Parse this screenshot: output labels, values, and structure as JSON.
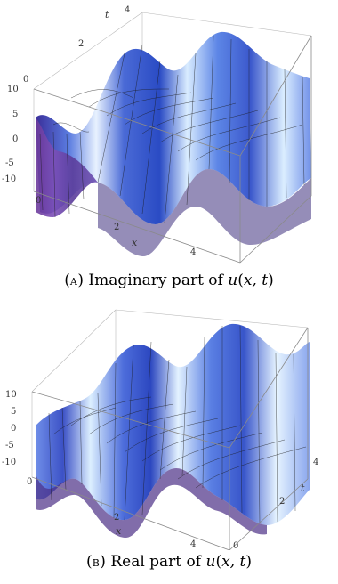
{
  "figures": [
    {
      "id": "a",
      "caption": {
        "label": "A",
        "text": "Imaginary part of",
        "func": "u",
        "args": "x, t"
      },
      "axes": {
        "x_label": "x",
        "t_label": "t",
        "z_ticks": [
          "10",
          "5",
          "0",
          "-5",
          "-10"
        ],
        "x_ticks": [
          "0",
          "2",
          "4"
        ],
        "t_ticks": [
          "0",
          "2",
          "4"
        ]
      }
    },
    {
      "id": "b",
      "caption": {
        "label": "B",
        "text": "Real part of",
        "func": "u",
        "args": "x, t"
      },
      "axes": {
        "x_label": "x",
        "t_label": "t",
        "z_ticks": [
          "10",
          "5",
          "0",
          "-5",
          "-10"
        ],
        "x_ticks": [
          "0",
          "2",
          "4"
        ],
        "t_ticks": [
          "0",
          "2",
          "4"
        ]
      }
    }
  ]
}
